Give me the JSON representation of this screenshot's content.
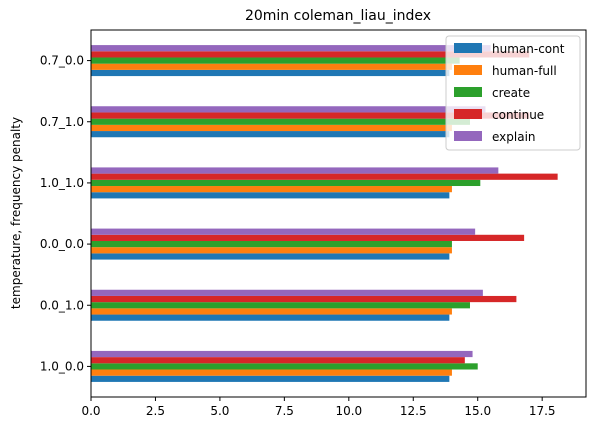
{
  "chart_data": {
    "type": "bar",
    "orientation": "horizontal",
    "title": "20min coleman_liau_index",
    "xlabel": "",
    "ylabel": "temperature, frequency penalty",
    "categories": [
      "1.0_0.0",
      "0.0_1.0",
      "0.0_0.0",
      "1.0_1.0",
      "0.7_1.0",
      "0.7_0.0"
    ],
    "xlim": [
      0,
      19.2
    ],
    "xticks": [
      "0.0",
      "2.5",
      "5.0",
      "7.5",
      "10.0",
      "12.5",
      "15.0",
      "17.5"
    ],
    "xtick_values": [
      0,
      2.5,
      5,
      7.5,
      10,
      12.5,
      15,
      17.5
    ],
    "grid": false,
    "legend_position": "top-right",
    "series": [
      {
        "name": "human-cont",
        "color": "#1f77b4",
        "values": [
          13.9,
          13.9,
          13.9,
          13.9,
          13.9,
          13.9
        ]
      },
      {
        "name": "human-full",
        "color": "#ff7f0e",
        "values": [
          14.0,
          14.0,
          14.0,
          14.0,
          14.0,
          14.0
        ]
      },
      {
        "name": "create",
        "color": "#2ca02c",
        "values": [
          15.0,
          14.7,
          14.0,
          15.1,
          14.7,
          14.3
        ]
      },
      {
        "name": "continue",
        "color": "#d62728",
        "values": [
          14.5,
          16.5,
          16.8,
          18.1,
          17.0,
          17.0
        ]
      },
      {
        "name": "explain",
        "color": "#9467bd",
        "values": [
          14.8,
          15.2,
          14.9,
          15.8,
          15.3,
          15.5
        ]
      }
    ]
  }
}
